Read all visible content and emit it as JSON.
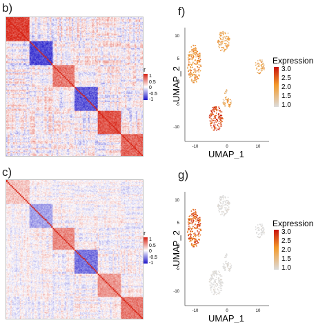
{
  "figure": {
    "panels": {
      "b": "b)",
      "c": "c)",
      "f": "f)",
      "g": "g)"
    }
  },
  "colors": {
    "neg": "#1a12c9",
    "pos": "#d71f10",
    "zero": "#ffffff",
    "expr_high": "#c8120c",
    "expr_mid": "#f39a2b",
    "expr_low": "#dcdcdc"
  },
  "chart_data": [
    {
      "type": "heatmap",
      "panel": "b)",
      "legend_title": "r",
      "legend_ticks": [
        "1",
        "0.5",
        "0",
        "-0.5",
        "-1"
      ],
      "value_range": [
        -1,
        1
      ]
    },
    {
      "type": "heatmap",
      "panel": "c)",
      "legend_title": "r",
      "legend_ticks": [
        "1",
        "0.5",
        "0",
        "-0.5",
        "-1"
      ],
      "value_range": [
        -1,
        1
      ]
    },
    {
      "type": "scatter",
      "panel": "f)",
      "xlabel": "UMAP_1",
      "ylabel": "UMAP_2",
      "x_ticks": [
        "-10",
        "0",
        "10"
      ],
      "y_ticks": [
        "10",
        "5",
        "0",
        "-5",
        "-10"
      ],
      "xlim": [
        -13,
        14
      ],
      "ylim": [
        -13,
        12
      ],
      "legend_title": "Expression",
      "legend_ticks": [
        "3.0",
        "2.5",
        "2.0",
        "1.5",
        "1.0"
      ],
      "color_range": [
        1.0,
        3.0
      ],
      "clusters": [
        {
          "cx": -10,
          "cy": 4,
          "rx": 2.2,
          "ry": 4.2,
          "level": 1.9
        },
        {
          "cx": -0.5,
          "cy": 9,
          "rx": 2.0,
          "ry": 2.4,
          "level": 1.7
        },
        {
          "cx": 11,
          "cy": 3.5,
          "rx": 1.6,
          "ry": 1.6,
          "level": 1.8
        },
        {
          "cx": 0.5,
          "cy": -4.5,
          "rx": 1.5,
          "ry": 1.3,
          "level": 1.7
        },
        {
          "cx": 0.0,
          "cy": -2.0,
          "rx": 0.6,
          "ry": 0.6,
          "level": 1.6
        },
        {
          "cx": -3,
          "cy": -8,
          "rx": 2.2,
          "ry": 2.8,
          "level": 2.6
        }
      ]
    },
    {
      "type": "scatter",
      "panel": "g)",
      "xlabel": "UMAP_1",
      "ylabel": "UMAP_2",
      "x_ticks": [
        "-10",
        "0",
        "10"
      ],
      "y_ticks": [
        "10",
        "5",
        "0",
        "-5",
        "-10"
      ],
      "xlim": [
        -13,
        14
      ],
      "ylim": [
        -13,
        12
      ],
      "legend_title": "Expression",
      "legend_ticks": [
        "3.0",
        "2.5",
        "2.0",
        "1.5",
        "1.0"
      ],
      "color_range": [
        1.0,
        3.0
      ],
      "clusters": [
        {
          "cx": -10,
          "cy": 4,
          "rx": 2.2,
          "ry": 4.2,
          "level": 2.4
        },
        {
          "cx": -0.5,
          "cy": 9,
          "rx": 2.0,
          "ry": 2.4,
          "level": 1.0
        },
        {
          "cx": 11,
          "cy": 3.5,
          "rx": 1.6,
          "ry": 1.6,
          "level": 1.0
        },
        {
          "cx": 0.5,
          "cy": -4.5,
          "rx": 1.5,
          "ry": 1.3,
          "level": 1.0
        },
        {
          "cx": 0.0,
          "cy": -2.0,
          "rx": 0.6,
          "ry": 0.6,
          "level": 1.0
        },
        {
          "cx": -3,
          "cy": -8,
          "rx": 2.2,
          "ry": 2.8,
          "level": 1.0
        }
      ]
    }
  ]
}
